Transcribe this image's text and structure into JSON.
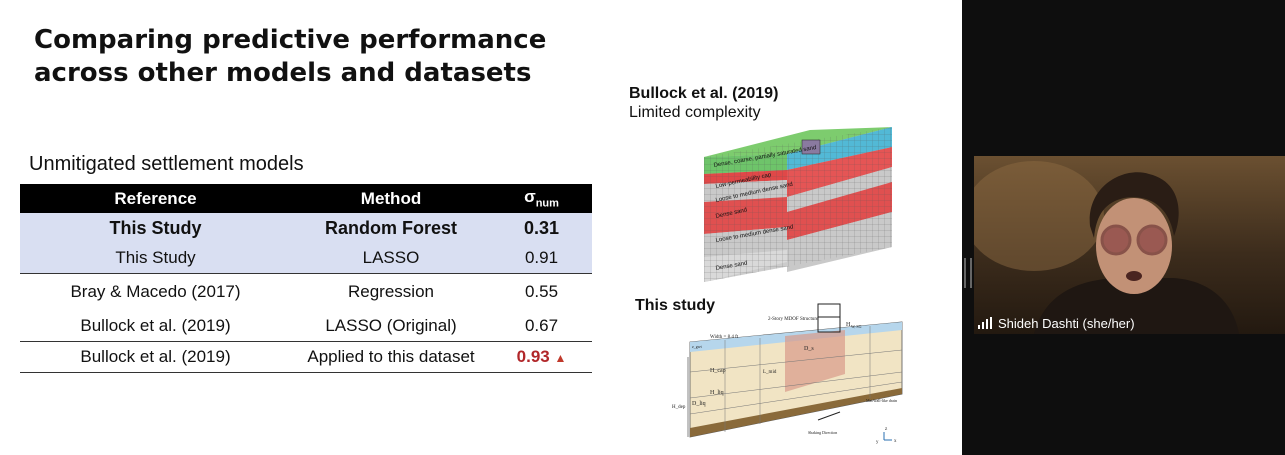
{
  "slide": {
    "title": "Comparing predictive performance across other models and datasets",
    "subhead": "Unmitigated settlement models",
    "table": {
      "headers": {
        "reference": "Reference",
        "method": "Method",
        "sigma": "σ",
        "sigma_sub": "num"
      },
      "rows": [
        {
          "reference": "This Study",
          "method": "Random Forest",
          "value": "0.31"
        },
        {
          "reference": "This Study",
          "method": "LASSO",
          "value": "0.91"
        },
        {
          "reference": "Bray & Macedo (2017)",
          "method": "Regression",
          "value": "0.55"
        },
        {
          "reference": "Bullock et al. (2019)",
          "method": "LASSO (Original)",
          "value": "0.67"
        },
        {
          "reference": "Bullock et al. (2019)",
          "method": "Applied to this dataset",
          "value": "0.93"
        }
      ],
      "increase_icon": "triangle-up-icon"
    },
    "figure1": {
      "caption_bold": "Bullock et al. (2019)",
      "caption": "Limited complexity",
      "layers": [
        "Dense, coarse, partially saturated sand",
        "Low-permeability cap",
        "Loose to medium dense sand",
        "Dense sand",
        "Loose to medium dense sand",
        "Loose to medium dense sand",
        "Dense sand"
      ]
    },
    "figure2": {
      "caption": "This study",
      "labels": {
        "structure": "2-Story MDOF Structure",
        "width": "Width = 8.4 ft",
        "hstruct": "H",
        "hsub": "W, SG",
        "zgwt": "z_gwt",
        "ds": "D_s",
        "hcap": "H_cap",
        "hliq": "H_liq",
        "dliq": "D_liq",
        "lmid": "L_mid",
        "hdep": "H_dep",
        "drain": "Mat/wall-like drain",
        "shaking": "Shaking Direction",
        "axis_x": "x",
        "axis_y": "y",
        "axis_z": "z"
      }
    }
  },
  "video": {
    "participant_name": "Shideh Dashti (she/her)",
    "icons": {
      "signal": "signal-bars-icon"
    }
  },
  "colors": {
    "highlight_row": "#d9dff2",
    "header_bg": "#000000",
    "increase": "#b1272a"
  }
}
